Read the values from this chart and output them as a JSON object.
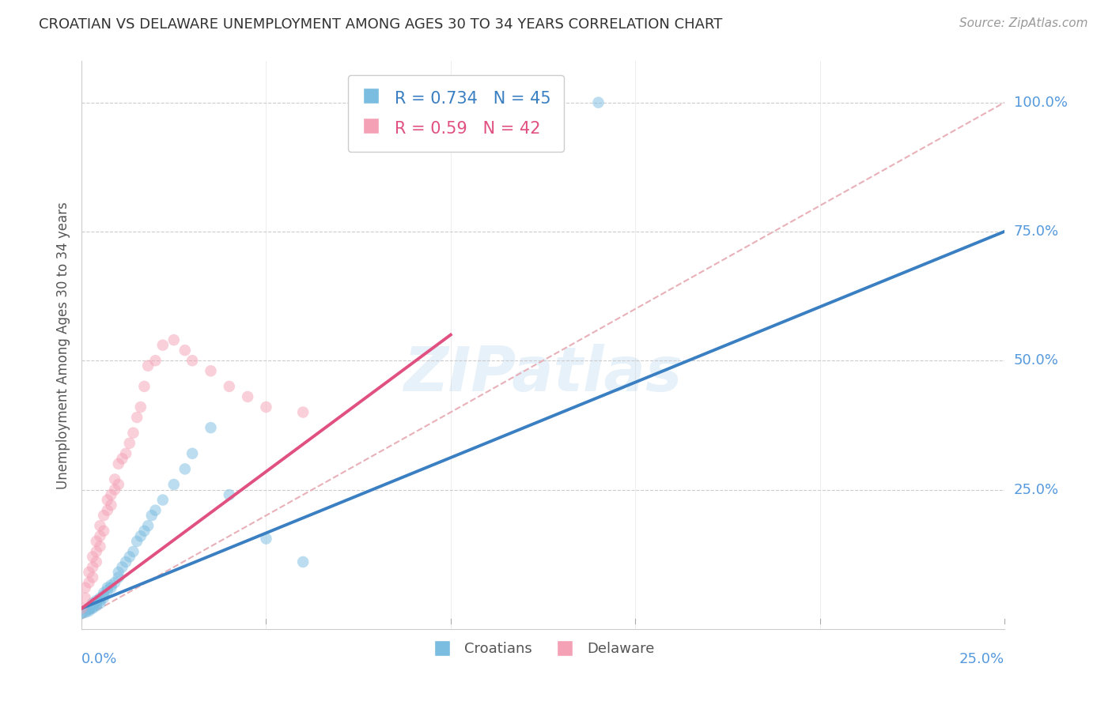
{
  "title": "CROATIAN VS DELAWARE UNEMPLOYMENT AMONG AGES 30 TO 34 YEARS CORRELATION CHART",
  "source": "Source: ZipAtlas.com",
  "ylabel": "Unemployment Among Ages 30 to 34 years",
  "xlim": [
    0.0,
    0.25
  ],
  "ylim": [
    -0.02,
    1.08
  ],
  "yticks": [
    0.25,
    0.5,
    0.75,
    1.0
  ],
  "xtick_left_label": "0.0%",
  "xtick_right_label": "25.0%",
  "ytick_labels": [
    "25.0%",
    "50.0%",
    "75.0%",
    "100.0%"
  ],
  "croatians_R": 0.734,
  "croatians_N": 45,
  "delaware_R": 0.59,
  "delaware_N": 42,
  "croatians_color": "#7bbde0",
  "delaware_color": "#f4a0b5",
  "croatians_line_color": "#3a7fc1",
  "delaware_line_color": "#e05080",
  "ref_line_color": "#e8b0b8",
  "background_color": "#ffffff",
  "grid_color": "#cccccc",
  "title_color": "#333333",
  "axis_label_color": "#555555",
  "tick_label_color": "#5599dd",
  "source_color": "#999999",
  "croatians_x": [
    0.0,
    0.001,
    0.001,
    0.002,
    0.002,
    0.002,
    0.003,
    0.003,
    0.003,
    0.003,
    0.004,
    0.004,
    0.004,
    0.005,
    0.005,
    0.005,
    0.006,
    0.006,
    0.006,
    0.007,
    0.007,
    0.008,
    0.008,
    0.009,
    0.01,
    0.01,
    0.011,
    0.012,
    0.013,
    0.014,
    0.015,
    0.016,
    0.017,
    0.018,
    0.019,
    0.02,
    0.022,
    0.025,
    0.028,
    0.03,
    0.035,
    0.04,
    0.05,
    0.06,
    0.14
  ],
  "croatians_y": [
    0.01,
    0.012,
    0.015,
    0.015,
    0.02,
    0.018,
    0.02,
    0.022,
    0.025,
    0.03,
    0.025,
    0.03,
    0.035,
    0.03,
    0.04,
    0.035,
    0.04,
    0.05,
    0.045,
    0.055,
    0.06,
    0.06,
    0.065,
    0.07,
    0.08,
    0.09,
    0.1,
    0.11,
    0.12,
    0.13,
    0.15,
    0.16,
    0.17,
    0.18,
    0.2,
    0.21,
    0.23,
    0.26,
    0.29,
    0.32,
    0.37,
    0.24,
    0.155,
    0.11,
    1.0
  ],
  "delaware_x": [
    0.0,
    0.001,
    0.001,
    0.002,
    0.002,
    0.003,
    0.003,
    0.003,
    0.004,
    0.004,
    0.004,
    0.005,
    0.005,
    0.005,
    0.006,
    0.006,
    0.007,
    0.007,
    0.008,
    0.008,
    0.009,
    0.009,
    0.01,
    0.01,
    0.011,
    0.012,
    0.013,
    0.014,
    0.015,
    0.016,
    0.017,
    0.018,
    0.02,
    0.022,
    0.025,
    0.028,
    0.03,
    0.035,
    0.04,
    0.045,
    0.05,
    0.06
  ],
  "delaware_y": [
    0.02,
    0.04,
    0.06,
    0.07,
    0.09,
    0.08,
    0.1,
    0.12,
    0.11,
    0.13,
    0.15,
    0.14,
    0.16,
    0.18,
    0.17,
    0.2,
    0.21,
    0.23,
    0.22,
    0.24,
    0.25,
    0.27,
    0.26,
    0.3,
    0.31,
    0.32,
    0.34,
    0.36,
    0.39,
    0.41,
    0.45,
    0.49,
    0.5,
    0.53,
    0.54,
    0.52,
    0.5,
    0.48,
    0.45,
    0.43,
    0.41,
    0.4
  ],
  "watermark": "ZIPatlas",
  "marker_size": 110,
  "marker_alpha": 0.5,
  "line_width": 2.8
}
